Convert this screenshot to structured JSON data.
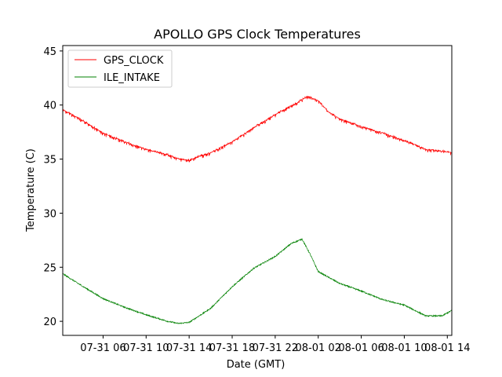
{
  "chart_data": {
    "type": "line",
    "title": "APOLLO GPS Clock Temperatures",
    "xlabel": "Date (GMT)",
    "ylabel": "Temperature (C)",
    "xlim": [
      "07-31 02:15",
      "08-01 14:25"
    ],
    "ylim": [
      18.7,
      45.5
    ],
    "x_ticks": [
      {
        "t": "07-31 06:00",
        "label": "07-31 06"
      },
      {
        "t": "07-31 10:00",
        "label": "07-31 10"
      },
      {
        "t": "07-31 14:00",
        "label": "07-31 14"
      },
      {
        "t": "07-31 18:00",
        "label": "07-31 18"
      },
      {
        "t": "07-31 22:00",
        "label": "07-31 22"
      },
      {
        "t": "08-01 02:00",
        "label": "08-01 02"
      },
      {
        "t": "08-01 06:00",
        "label": "08-01 06"
      },
      {
        "t": "08-01 10:00",
        "label": "08-01 10"
      },
      {
        "t": "08-01 14:00",
        "label": "08-01 14"
      }
    ],
    "y_ticks": [
      {
        "v": 20,
        "label": "20"
      },
      {
        "v": 25,
        "label": "25"
      },
      {
        "v": 30,
        "label": "30"
      },
      {
        "v": 35,
        "label": "35"
      },
      {
        "v": 40,
        "label": "40"
      },
      {
        "v": 45,
        "label": "45"
      }
    ],
    "grid": false,
    "legend_position": "top-left",
    "series": [
      {
        "name": "GPS_CLOCK",
        "color": "#ff0000",
        "noise": 0.55,
        "points": [
          [
            "07-31 02:15",
            39.6
          ],
          [
            "07-31 04:00",
            38.6
          ],
          [
            "07-31 06:00",
            37.4
          ],
          [
            "07-31 08:00",
            36.6
          ],
          [
            "07-31 10:00",
            35.9
          ],
          [
            "07-31 12:00",
            35.4
          ],
          [
            "07-31 13:00",
            35.0
          ],
          [
            "07-31 14:00",
            34.9
          ],
          [
            "07-31 16:00",
            35.6
          ],
          [
            "07-31 18:00",
            36.6
          ],
          [
            "07-31 20:00",
            37.9
          ],
          [
            "07-31 22:00",
            39.1
          ],
          [
            "08-01 00:00",
            40.2
          ],
          [
            "08-01 01:00",
            40.8
          ],
          [
            "08-01 02:00",
            40.4
          ],
          [
            "08-01 03:00",
            39.3
          ],
          [
            "08-01 04:00",
            38.7
          ],
          [
            "08-01 06:00",
            38.0
          ],
          [
            "08-01 08:00",
            37.4
          ],
          [
            "08-01 10:00",
            36.7
          ],
          [
            "08-01 12:00",
            35.9
          ],
          [
            "08-01 14:25",
            35.6
          ]
        ]
      },
      {
        "name": "ILE_INTAKE",
        "color": "#008000",
        "noise": 0.12,
        "points": [
          [
            "07-31 02:15",
            24.4
          ],
          [
            "07-31 04:00",
            23.3
          ],
          [
            "07-31 06:00",
            22.1
          ],
          [
            "07-31 08:00",
            21.3
          ],
          [
            "07-31 10:00",
            20.6
          ],
          [
            "07-31 12:00",
            20.0
          ],
          [
            "07-31 13:00",
            19.8
          ],
          [
            "07-31 14:00",
            19.9
          ],
          [
            "07-31 16:00",
            21.2
          ],
          [
            "07-31 18:00",
            23.2
          ],
          [
            "07-31 20:00",
            24.9
          ],
          [
            "07-31 22:00",
            26.0
          ],
          [
            "07-31 23:30",
            27.2
          ],
          [
            "08-01 00:30",
            27.6
          ],
          [
            "08-01 01:15",
            26.2
          ],
          [
            "08-01 02:00",
            24.6
          ],
          [
            "08-01 04:00",
            23.5
          ],
          [
            "08-01 06:00",
            22.8
          ],
          [
            "08-01 08:00",
            22.0
          ],
          [
            "08-01 10:00",
            21.5
          ],
          [
            "08-01 12:00",
            20.5
          ],
          [
            "08-01 13:30",
            20.5
          ],
          [
            "08-01 14:25",
            21.0
          ]
        ]
      }
    ]
  }
}
